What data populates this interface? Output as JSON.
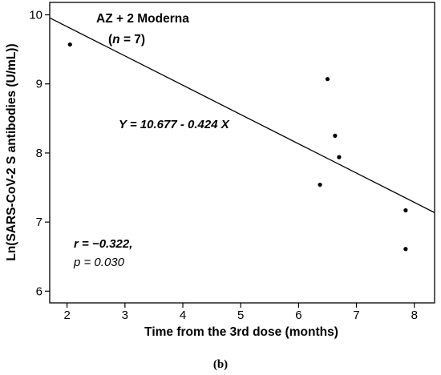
{
  "chart_data": {
    "type": "scatter",
    "title": "",
    "xlabel": "Time from the 3rd dose (months)",
    "ylabel": "Ln(SARS-CoV-2 S antibodies (U/mL))",
    "xlim": [
      1.7,
      8.35
    ],
    "ylim": [
      5.83,
      10.18
    ],
    "x_ticks": [
      2,
      3,
      4,
      5,
      6,
      7,
      8
    ],
    "y_ticks": [
      6,
      7,
      8,
      9,
      10
    ],
    "grid": false,
    "points": [
      {
        "x": 2.05,
        "y": 9.57
      },
      {
        "x": 6.37,
        "y": 7.54
      },
      {
        "x": 6.5,
        "y": 9.07
      },
      {
        "x": 6.63,
        "y": 8.25
      },
      {
        "x": 6.7,
        "y": 7.94
      },
      {
        "x": 7.85,
        "y": 7.17
      },
      {
        "x": 7.85,
        "y": 6.61
      }
    ],
    "fit_line": {
      "intercept": 10.677,
      "slope": -0.424
    },
    "annotations": {
      "group_line1": "AZ + 2 Moderna",
      "group_line2_prefix": "(",
      "group_line2_n": "n",
      "group_line2_suffix": " = 7)",
      "equation": "Y = 10.677 - 0.424 X",
      "r_text": "r = −0.322,",
      "p_text": "p = 0.030"
    },
    "panel_label": "(b)"
  }
}
